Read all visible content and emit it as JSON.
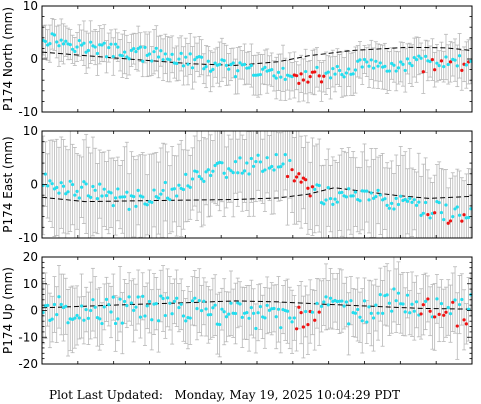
{
  "footer": {
    "label": "Plot Last Updated:",
    "timestamp": "Monday, May 19, 2025 10:04:29 PDT"
  },
  "colors": {
    "primary_points": "#22ddee",
    "recent_points": "#ee1111",
    "error_bars": "#b8b8b8",
    "model_line": "#000000"
  },
  "chart_data": [
    {
      "type": "scatter",
      "ylabel": "P174 North (mm)",
      "ylim": [
        -10,
        10
      ],
      "yticks": [
        -10,
        0,
        10
      ],
      "grid": false,
      "n_points": 190,
      "errorbar_halfwidth": 3.5,
      "trend_anchors": [
        [
          0,
          4.2
        ],
        [
          0.12,
          2.0
        ],
        [
          0.3,
          0.3
        ],
        [
          0.45,
          -2.0
        ],
        [
          0.58,
          -3.2
        ],
        [
          0.66,
          -2.8
        ],
        [
          0.74,
          -1.5
        ],
        [
          0.86,
          -0.8
        ],
        [
          1,
          -0.6
        ]
      ],
      "recent_segment": {
        "start": 0.58,
        "end": 0.66,
        "offset": -0.8
      },
      "recent_tail": {
        "start": 0.88,
        "offset": -0.5
      },
      "scatter_amplitude": 1.4,
      "model_line": [
        [
          0,
          1.3
        ],
        [
          0.12,
          0.5
        ],
        [
          0.25,
          -0.3
        ],
        [
          0.35,
          -0.9
        ],
        [
          0.45,
          -1.2
        ],
        [
          0.55,
          -0.5
        ],
        [
          0.62,
          0.6
        ],
        [
          0.72,
          1.6
        ],
        [
          0.85,
          2.2
        ],
        [
          0.94,
          2.1
        ],
        [
          1,
          1.6
        ]
      ]
    },
    {
      "type": "scatter",
      "ylabel": "P174 East (mm)",
      "ylim": [
        -10,
        10
      ],
      "yticks": [
        -10,
        0,
        10
      ],
      "grid": false,
      "n_points": 190,
      "errorbar_halfwidth": 7.5,
      "trend_anchors": [
        [
          0,
          0.5
        ],
        [
          0.08,
          -0.6
        ],
        [
          0.2,
          -3.0
        ],
        [
          0.3,
          -1.0
        ],
        [
          0.38,
          2.5
        ],
        [
          0.5,
          3.8
        ],
        [
          0.56,
          4.5
        ],
        [
          0.6,
          1.0
        ],
        [
          0.66,
          -2.2
        ],
        [
          0.74,
          -1.8
        ],
        [
          0.84,
          -4.0
        ],
        [
          0.94,
          -5.2
        ],
        [
          1,
          -5.8
        ]
      ],
      "recent_segment": {
        "start": 0.57,
        "end": 0.63,
        "offset": -0.5
      },
      "recent_tail": {
        "start": 0.88,
        "offset": -0.8
      },
      "scatter_amplitude": 1.8,
      "model_line": [
        [
          0,
          -2.4
        ],
        [
          0.1,
          -3.2
        ],
        [
          0.25,
          -3.0
        ],
        [
          0.45,
          -2.8
        ],
        [
          0.55,
          -2.5
        ],
        [
          0.62,
          -1.8
        ],
        [
          0.68,
          -0.6
        ],
        [
          0.75,
          -1.3
        ],
        [
          0.82,
          -2.0
        ],
        [
          0.9,
          -2.6
        ],
        [
          1,
          -2.2
        ]
      ]
    },
    {
      "type": "scatter",
      "ylabel": "P174 Up (mm)",
      "ylim": [
        -20,
        20
      ],
      "yticks": [
        -20,
        -10,
        0,
        10,
        20
      ],
      "grid": false,
      "n_points": 190,
      "errorbar_halfwidth": 10,
      "trend_anchors": [
        [
          0,
          0.5
        ],
        [
          0.15,
          0.0
        ],
        [
          0.3,
          1.0
        ],
        [
          0.45,
          -1.5
        ],
        [
          0.55,
          -2.0
        ],
        [
          0.65,
          0.5
        ],
        [
          0.75,
          -1.0
        ],
        [
          0.82,
          5.0
        ],
        [
          0.9,
          2.0
        ],
        [
          1,
          1.0
        ]
      ],
      "recent_segment": {
        "start": 0.59,
        "end": 0.65,
        "offset": -2.0
      },
      "recent_tail": {
        "start": 0.88,
        "offset": -2.5
      },
      "scatter_amplitude": 5.0,
      "model_line": [
        [
          0,
          1.0
        ],
        [
          0.1,
          1.6
        ],
        [
          0.2,
          2.2
        ],
        [
          0.35,
          3.0
        ],
        [
          0.45,
          3.6
        ],
        [
          0.55,
          3.2
        ],
        [
          0.65,
          2.4
        ],
        [
          0.78,
          1.5
        ],
        [
          0.88,
          0.8
        ],
        [
          1,
          0.5
        ]
      ]
    }
  ]
}
